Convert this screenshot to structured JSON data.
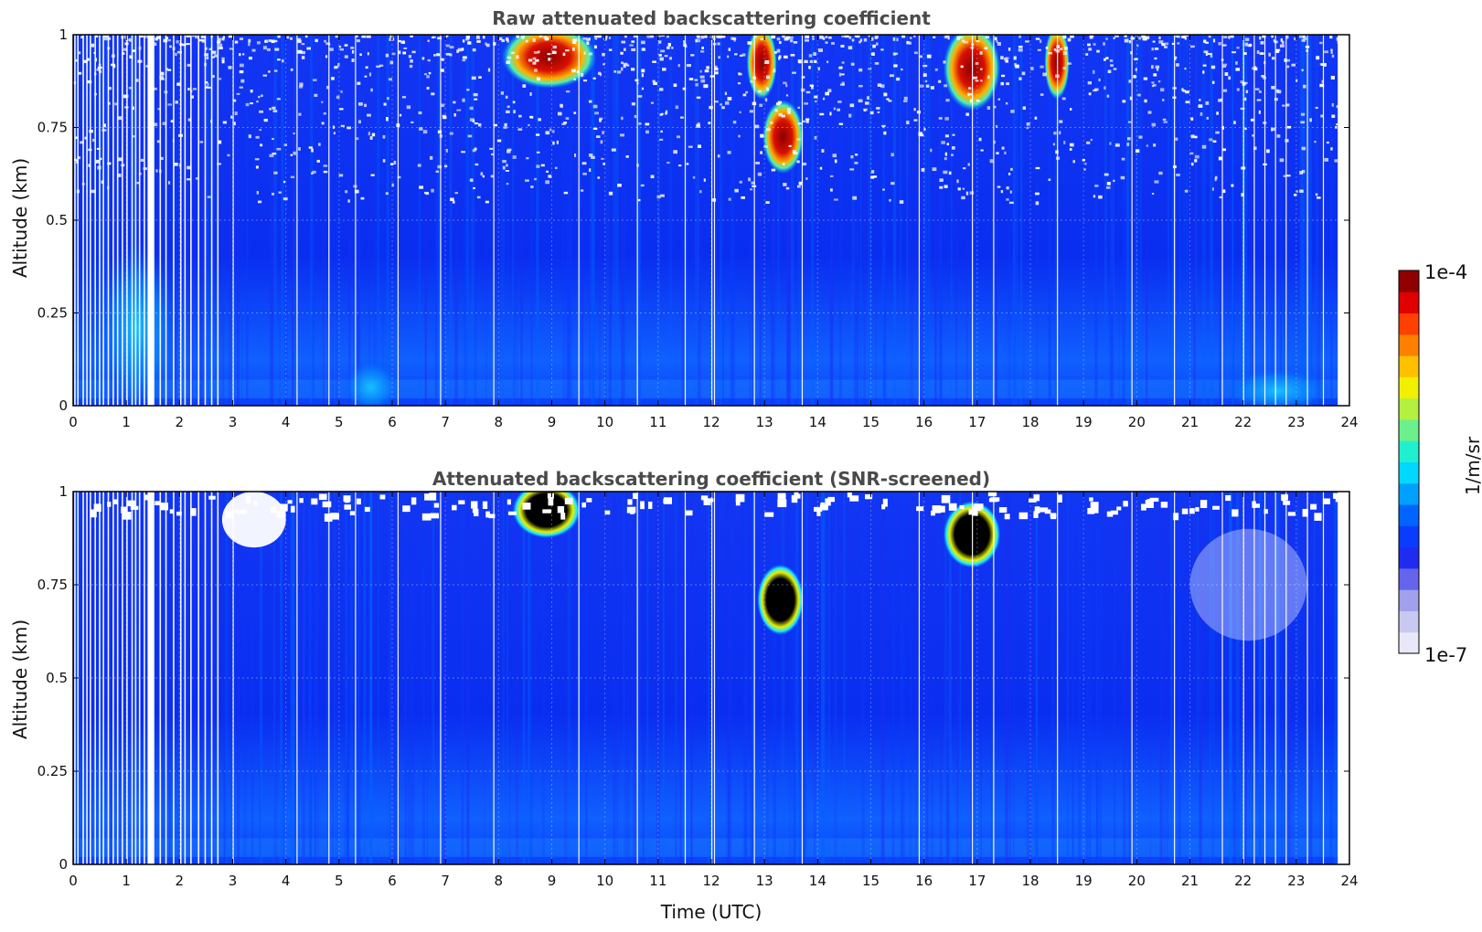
{
  "chart_data": [
    {
      "type": "heatmap",
      "title": "Raw attenuated backscattering coefficient",
      "xlabel": "",
      "ylabel": "Altitude (km)",
      "xlim": [
        0,
        24
      ],
      "ylim": [
        0,
        1
      ],
      "x_ticks": [
        "0",
        "1",
        "2",
        "3",
        "4",
        "5",
        "6",
        "7",
        "8",
        "9",
        "10",
        "11",
        "12",
        "13",
        "14",
        "15",
        "16",
        "17",
        "18",
        "19",
        "20",
        "21",
        "22",
        "23",
        "24"
      ],
      "y_ticks": [
        "0",
        "0.25",
        "0.5",
        "0.75",
        "1"
      ],
      "grid": true,
      "features": [
        {
          "label": "cloud",
          "x": [
            8.2,
            9.7
          ],
          "y": [
            0.88,
            1.0
          ],
          "level": "high"
        },
        {
          "label": "cloud",
          "x": [
            12.8,
            13.1
          ],
          "y": [
            0.85,
            1.0
          ],
          "level": "high"
        },
        {
          "label": "cloud",
          "x": [
            13.1,
            13.6
          ],
          "y": [
            0.65,
            0.8
          ],
          "level": "high"
        },
        {
          "label": "cloud",
          "x": [
            16.5,
            17.3
          ],
          "y": [
            0.82,
            1.0
          ],
          "level": "high"
        },
        {
          "label": "cloud",
          "x": [
            18.4,
            18.6
          ],
          "y": [
            0.85,
            1.0
          ],
          "level": "high"
        },
        {
          "label": "aerosol",
          "x": [
            0.6,
            1.8
          ],
          "y": [
            0.0,
            0.42
          ],
          "level": "medium"
        },
        {
          "label": "aerosol",
          "x": [
            5.2,
            6.0
          ],
          "y": [
            0.0,
            0.1
          ],
          "level": "medium"
        },
        {
          "label": "aerosol",
          "x": [
            21.8,
            23.5
          ],
          "y": [
            0.0,
            0.08
          ],
          "level": "medium"
        }
      ]
    },
    {
      "type": "heatmap",
      "title": "Attenuated backscattering coefficient (SNR-screened)",
      "xlabel": "Time (UTC)",
      "ylabel": "Altitude (km)",
      "xlim": [
        0,
        24
      ],
      "ylim": [
        0,
        1
      ],
      "x_ticks": [
        "0",
        "1",
        "2",
        "3",
        "4",
        "5",
        "6",
        "7",
        "8",
        "9",
        "10",
        "11",
        "12",
        "13",
        "14",
        "15",
        "16",
        "17",
        "18",
        "19",
        "20",
        "21",
        "22",
        "23",
        "24"
      ],
      "y_ticks": [
        "0",
        "0.25",
        "0.5",
        "0.75",
        "1"
      ],
      "grid": true,
      "features": [
        {
          "label": "cloud",
          "x": [
            8.4,
            9.4
          ],
          "y": [
            0.9,
            1.0
          ],
          "level": "saturated"
        },
        {
          "label": "cloud",
          "x": [
            13.0,
            13.6
          ],
          "y": [
            0.64,
            0.78
          ],
          "level": "saturated"
        },
        {
          "label": "cloud",
          "x": [
            16.5,
            17.3
          ],
          "y": [
            0.82,
            0.95
          ],
          "level": "saturated"
        },
        {
          "label": "screened",
          "x": [
            2.8,
            4.0
          ],
          "y": [
            0.85,
            1.0
          ],
          "level": "none"
        },
        {
          "label": "screened",
          "x": [
            21.0,
            23.2
          ],
          "y": [
            0.6,
            0.9
          ],
          "level": "none"
        }
      ]
    }
  ],
  "colorbar": {
    "max_label": "1e-4",
    "min_label": "1e-7",
    "unit": "1/m/sr",
    "colors": [
      "#e8e8f8",
      "#c8c8f0",
      "#a0a0ec",
      "#6464ec",
      "#1f2cf0",
      "#0a3cff",
      "#0064ff",
      "#00a0ff",
      "#00d8ff",
      "#20f0d0",
      "#6cf08c",
      "#b4f040",
      "#f0f000",
      "#ffc000",
      "#ff8000",
      "#ff4000",
      "#e00000",
      "#900000"
    ]
  },
  "colors": {
    "background_blue": "#0a32f0",
    "title_gray": "#4a4a4a",
    "gap_white": "#ffffff",
    "saturated": "#000000"
  }
}
